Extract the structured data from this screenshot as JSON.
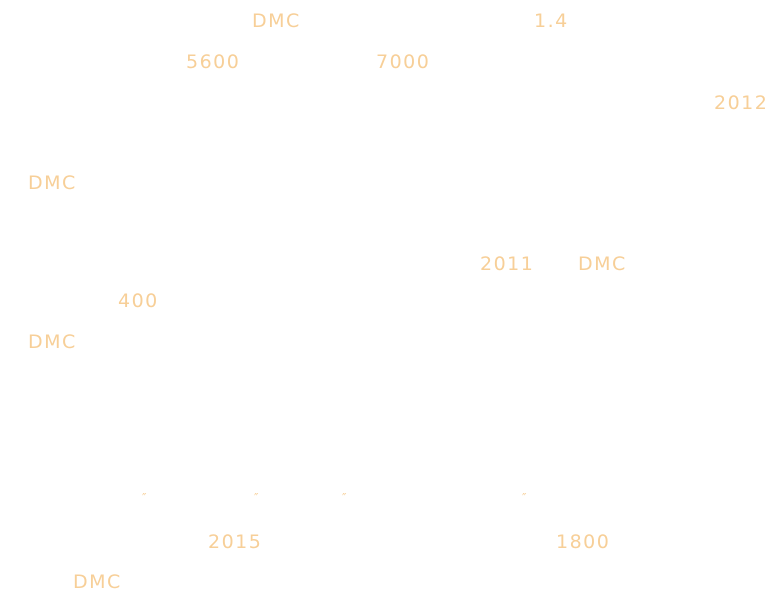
{
  "fragments": [
    "DMC",
    "1.4",
    "5600",
    "7000",
    "2012",
    "DMC",
    "2011",
    "DMC",
    "400",
    "DMC",
    "2015",
    "1800",
    "DMC"
  ],
  "marks": [
    "″",
    "″",
    "″",
    "″"
  ]
}
